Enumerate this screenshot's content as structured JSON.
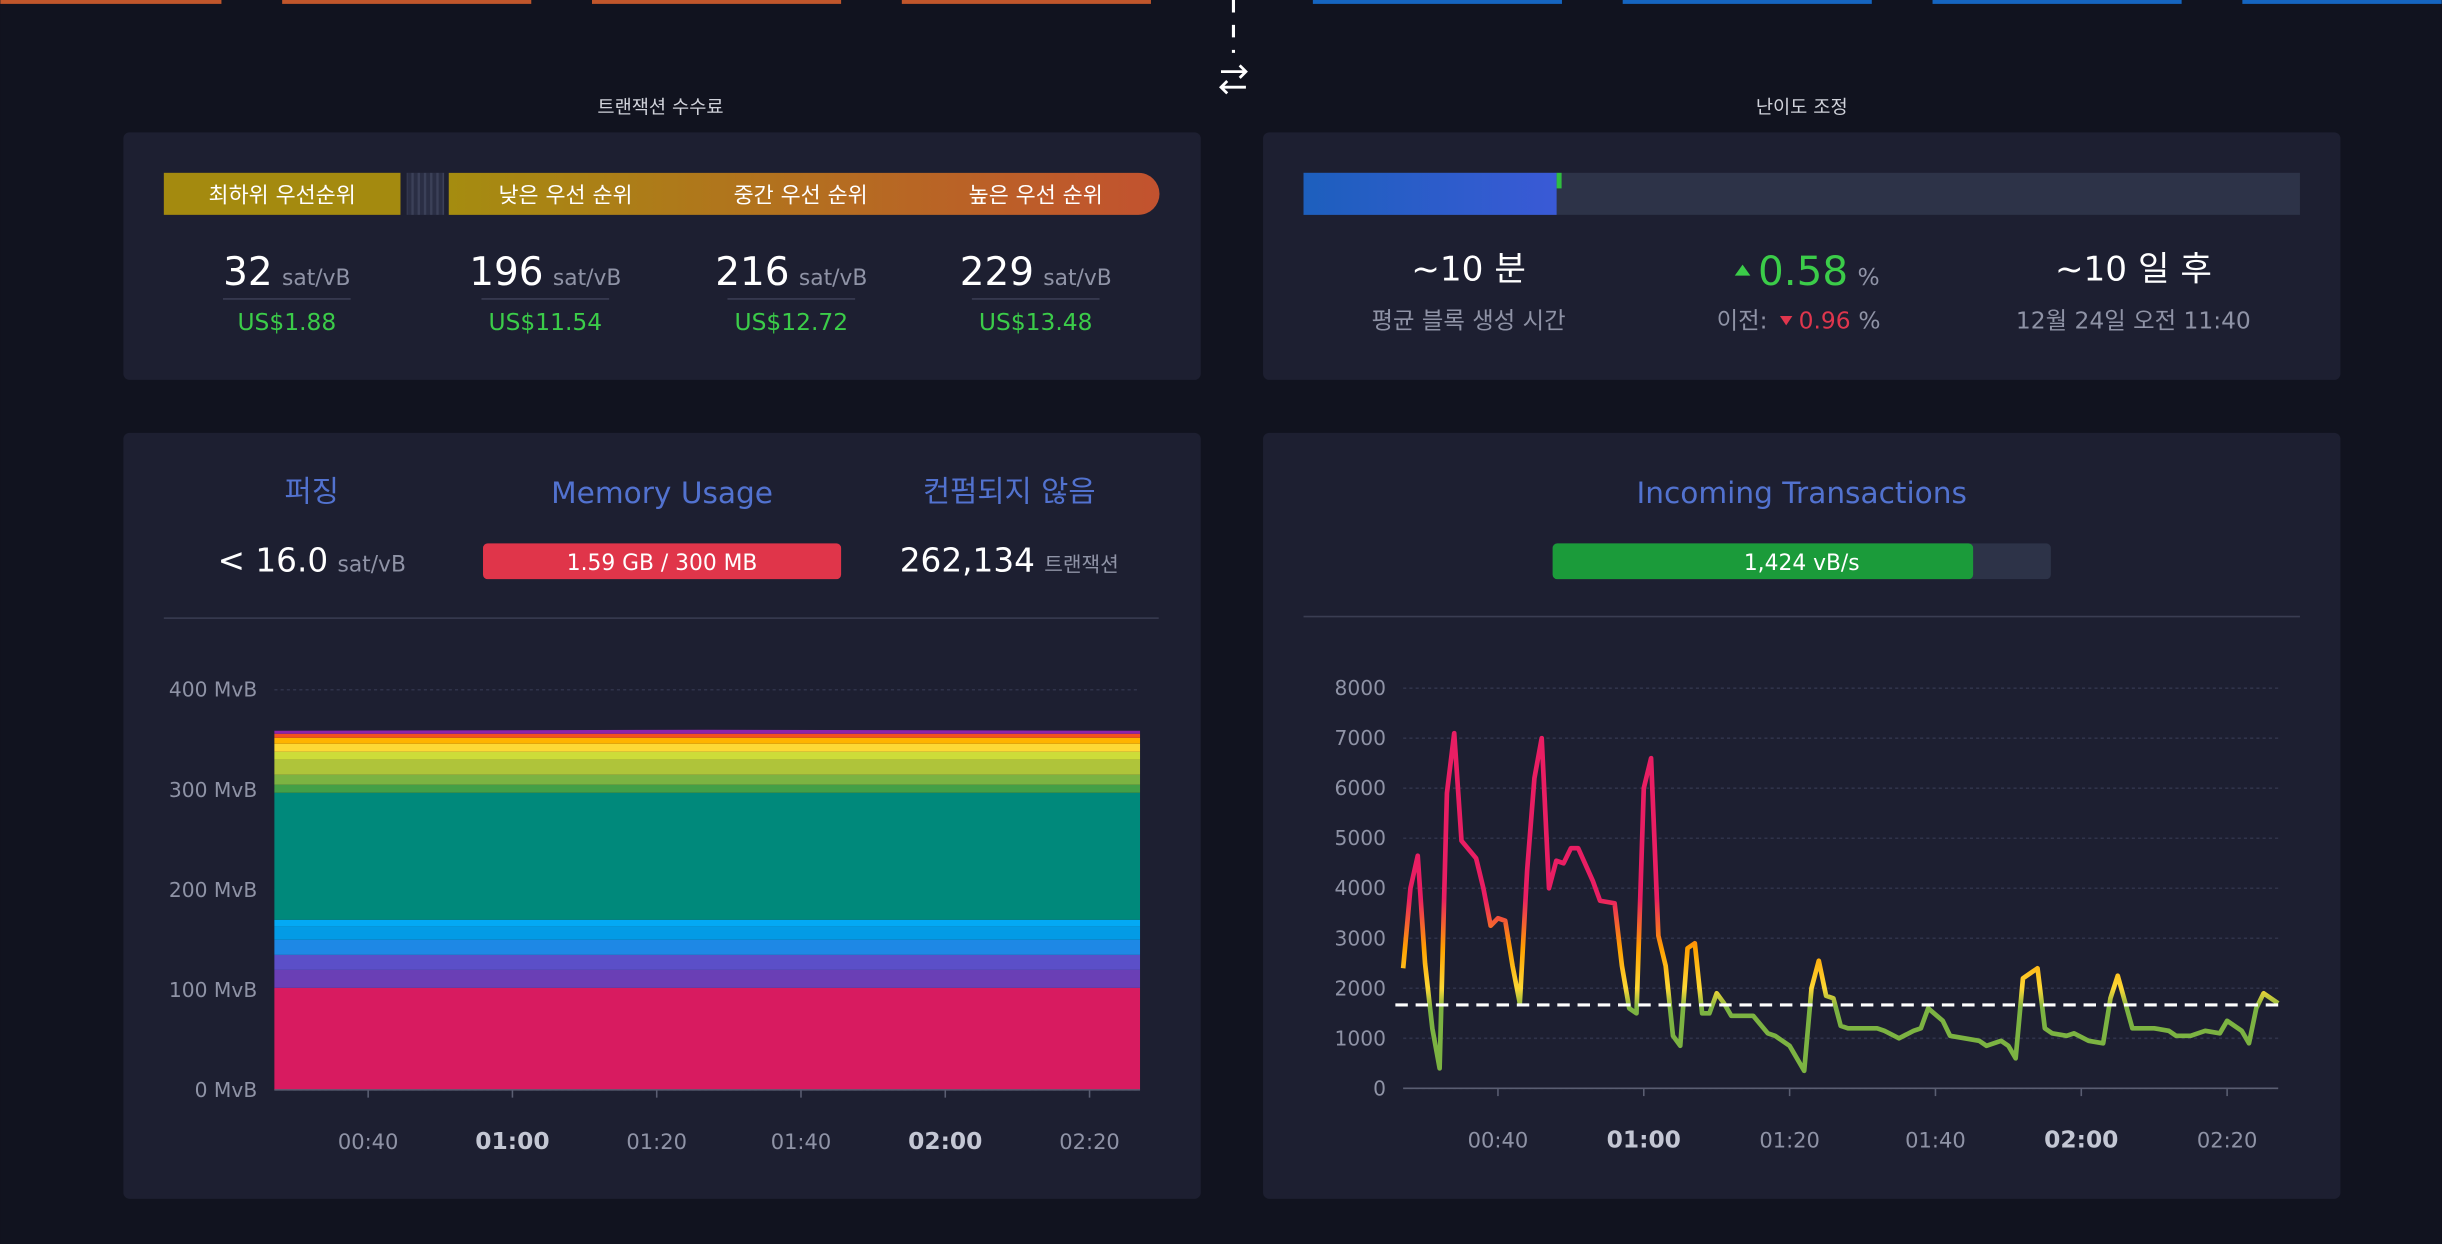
{
  "fees": {
    "title": "트랜잭션 수수료",
    "unit": "sat/vB",
    "tiers": [
      {
        "label": "최하위 우선순위",
        "rate": 32,
        "usd": "US$1.88"
      },
      {
        "label": "낮은 우선 순위",
        "rate": 196,
        "usd": "US$11.54"
      },
      {
        "label": "중간 우선 순위",
        "rate": 216,
        "usd": "US$12.72"
      },
      {
        "label": "높은 우선 순위",
        "rate": 229,
        "usd": "US$13.48"
      }
    ]
  },
  "difficulty": {
    "title": "난이도 조정",
    "progress": 25.4,
    "ahead": 0.5,
    "block_time": "~10 분",
    "block_time_label": "평균 블록 생성 시간",
    "change": 0.58,
    "change_unit": "%",
    "previous_label": "이전:",
    "previous": 0.96,
    "previous_unit": "%",
    "eta": "~10 일 후",
    "eta_date": "12월 24일 오전 11:40"
  },
  "mempool": {
    "purging_label": "퍼징",
    "purging": "< 16.0",
    "purging_unit": "sat/vB",
    "memory_label": "Memory Usage",
    "memory": "1.59 GB / 300 MB",
    "unconfirmed_label": "컨펌되지 않음",
    "unconfirmed": "262,134",
    "unconfirmed_unit": "트랜잭션"
  },
  "incoming": {
    "title": "Incoming Transactions",
    "rate": "1,424 vB/s",
    "fill": 84.4
  },
  "chart_data": [
    {
      "type": "area",
      "stacked": true,
      "grid": true,
      "x": [
        "00:27",
        "01:27",
        "02:27"
      ],
      "xlim": [
        "00:27",
        "02:27"
      ],
      "xticks": [
        "00:40",
        "01:00",
        "01:20",
        "01:40",
        "02:00",
        "02:20"
      ],
      "ylim": [
        0,
        400
      ],
      "yticks": [
        {
          "value": 0,
          "label": "0 MvB"
        },
        {
          "value": 100,
          "label": "100 MvB"
        },
        {
          "value": 200,
          "label": "200 MvB"
        },
        {
          "value": 300,
          "label": "300 MvB"
        },
        {
          "value": 400,
          "label": "400 MvB"
        }
      ],
      "series": [
        {
          "color": "#d81b60",
          "values": [
            102,
            102,
            102
          ]
        },
        {
          "color": "#6a3fb5",
          "values": [
            18,
            18,
            18
          ]
        },
        {
          "color": "#5b4fc8",
          "values": [
            15,
            15,
            15
          ]
        },
        {
          "color": "#1e88e5",
          "values": [
            15,
            15,
            15
          ]
        },
        {
          "color": "#039be5",
          "values": [
            13,
            13,
            13
          ]
        },
        {
          "color": "#03a9f4",
          "values": [
            7,
            7,
            7
          ]
        },
        {
          "color": "#00897b",
          "values": [
            127,
            127,
            127
          ]
        },
        {
          "color": "#43a047",
          "values": [
            8,
            8,
            8
          ]
        },
        {
          "color": "#7cb342",
          "values": [
            10,
            10,
            10
          ]
        },
        {
          "color": "#afc43a",
          "values": [
            15,
            15,
            15
          ]
        },
        {
          "color": "#cddc39",
          "values": [
            8,
            8,
            8
          ]
        },
        {
          "color": "#fdd835",
          "values": [
            8,
            8,
            8
          ]
        },
        {
          "color": "#ffb300",
          "values": [
            6,
            6,
            6
          ]
        },
        {
          "color": "#f4511e",
          "values": [
            4,
            4,
            4
          ]
        },
        {
          "color": "#8e24aa",
          "values": [
            3,
            4,
            3
          ]
        }
      ]
    },
    {
      "type": "line",
      "grid": true,
      "x": [
        "00:27",
        "00:28",
        "00:29",
        "00:30",
        "00:31",
        "00:32",
        "00:33",
        "00:34",
        "00:35",
        "00:37",
        "00:38",
        "00:39",
        "00:40",
        "00:41",
        "00:42",
        "00:43",
        "00:44",
        "00:45",
        "00:46",
        "00:47",
        "00:48",
        "00:49",
        "00:50",
        "00:51",
        "00:53",
        "00:54",
        "00:56",
        "00:57",
        "00:58",
        "00:59",
        "01:00",
        "01:01",
        "01:02",
        "01:03",
        "01:04",
        "01:05",
        "01:06",
        "01:07",
        "01:08",
        "01:09",
        "01:10",
        "01:11",
        "01:12",
        "01:13",
        "01:15",
        "01:17",
        "01:18",
        "01:20",
        "01:22",
        "01:23",
        "01:24",
        "01:25",
        "01:26",
        "01:27",
        "01:28",
        "01:30",
        "01:32",
        "01:33",
        "01:35",
        "01:37",
        "01:38",
        "01:39",
        "01:41",
        "01:42",
        "01:44",
        "01:46",
        "01:47",
        "01:49",
        "01:50",
        "01:51",
        "01:52",
        "01:54",
        "01:55",
        "01:56",
        "01:58",
        "01:59",
        "02:01",
        "02:03",
        "02:04",
        "02:05",
        "02:07",
        "02:08",
        "02:10",
        "02:12",
        "02:13",
        "02:15",
        "02:17",
        "02:19",
        "02:20",
        "02:22",
        "02:23",
        "02:24",
        "02:25",
        "02:27"
      ],
      "values": [
        2400,
        4000,
        4650,
        2500,
        1200,
        400,
        5900,
        7100,
        4950,
        4600,
        4000,
        3250,
        3400,
        3350,
        2450,
        1700,
        4350,
        6200,
        7000,
        4000,
        4550,
        4500,
        4800,
        4800,
        4150,
        3750,
        3700,
        2450,
        1600,
        1500,
        6000,
        6600,
        3050,
        2450,
        1050,
        850,
        2800,
        2900,
        1500,
        1500,
        1900,
        1700,
        1450,
        1450,
        1450,
        1100,
        1050,
        850,
        350,
        2000,
        2550,
        1850,
        1800,
        1250,
        1200,
        1200,
        1200,
        1150,
        1000,
        1150,
        1200,
        1600,
        1350,
        1050,
        1000,
        950,
        850,
        950,
        850,
        600,
        2200,
        2400,
        1200,
        1100,
        1050,
        1100,
        950,
        900,
        1800,
        2250,
        1200,
        1200,
        1200,
        1150,
        1050,
        1050,
        1150,
        1100,
        1350,
        1150,
        900,
        1600,
        1900,
        1700
      ],
      "xlim": [
        "00:27",
        "02:27"
      ],
      "xticks": [
        "00:40",
        "01:00",
        "01:20",
        "01:40",
        "02:00",
        "02:20"
      ],
      "ylim": [
        0,
        8000
      ],
      "yticks": [
        0,
        1000,
        2000,
        3000,
        4000,
        5000,
        6000,
        7000,
        8000
      ],
      "threshold": 1667,
      "threshold_color": "#ffffff",
      "color_stops": [
        {
          "value": 1600,
          "color": "#7cb342"
        },
        {
          "value": 2000,
          "color": "#fdd835"
        },
        {
          "value": 2800,
          "color": "#ffa000"
        },
        {
          "value": 3800,
          "color": "#e91e63"
        }
      ]
    }
  ]
}
